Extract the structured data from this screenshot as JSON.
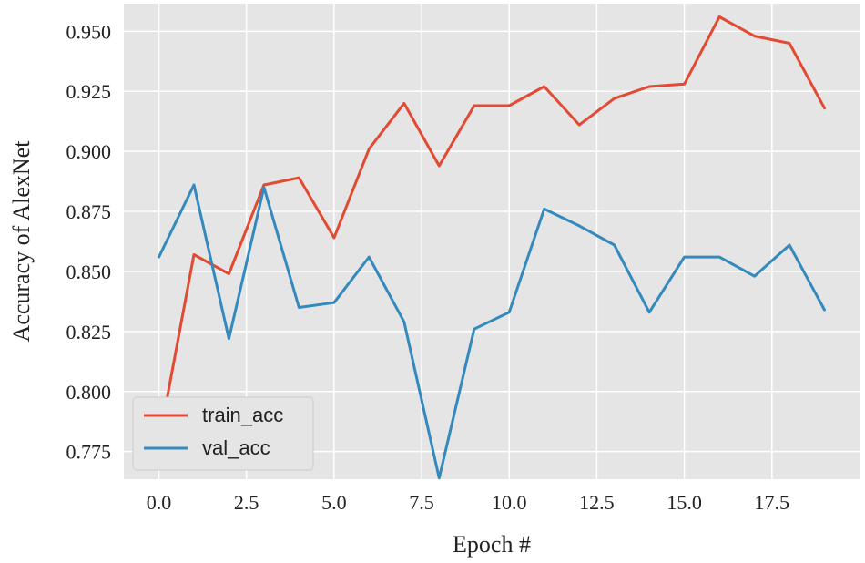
{
  "chart_data": {
    "type": "line",
    "title": "",
    "xlabel": "Epoch #",
    "ylabel": "Accuracy of AlexNet",
    "xlim": [
      -1,
      20
    ],
    "ylim": [
      0.7635,
      0.9615
    ],
    "xticks": [
      0,
      2.5,
      5,
      7.5,
      10,
      12.5,
      15,
      17.5
    ],
    "xtick_labels": [
      "0.0",
      "2.5",
      "5.0",
      "7.5",
      "10.0",
      "12.5",
      "15.0",
      "17.5"
    ],
    "yticks": [
      0.775,
      0.8,
      0.825,
      0.85,
      0.875,
      0.9,
      0.925,
      0.95
    ],
    "ytick_labels": [
      "0.775",
      "0.800",
      "0.825",
      "0.850",
      "0.875",
      "0.900",
      "0.925",
      "0.950"
    ],
    "grid": true,
    "legend_position": "bottom-left",
    "x": [
      0,
      1,
      2,
      3,
      4,
      5,
      6,
      7,
      8,
      9,
      10,
      11,
      12,
      13,
      14,
      15,
      16,
      17,
      18,
      19
    ],
    "series": [
      {
        "name": "train_acc",
        "color": "#e24a33",
        "values": [
          0.779,
          0.857,
          0.849,
          0.886,
          0.889,
          0.864,
          0.901,
          0.92,
          0.894,
          0.919,
          0.919,
          0.927,
          0.911,
          0.922,
          0.927,
          0.928,
          0.956,
          0.948,
          0.945,
          0.918
        ]
      },
      {
        "name": "val_acc",
        "color": "#348abd",
        "values": [
          0.856,
          0.886,
          0.822,
          0.885,
          0.835,
          0.837,
          0.856,
          0.829,
          0.764,
          0.826,
          0.833,
          0.876,
          0.869,
          0.861,
          0.833,
          0.856,
          0.856,
          0.848,
          0.861,
          0.834
        ]
      }
    ]
  },
  "style": {
    "background": "#ffffff",
    "plot_background": "#e5e5e5",
    "grid_color": "#ffffff"
  }
}
